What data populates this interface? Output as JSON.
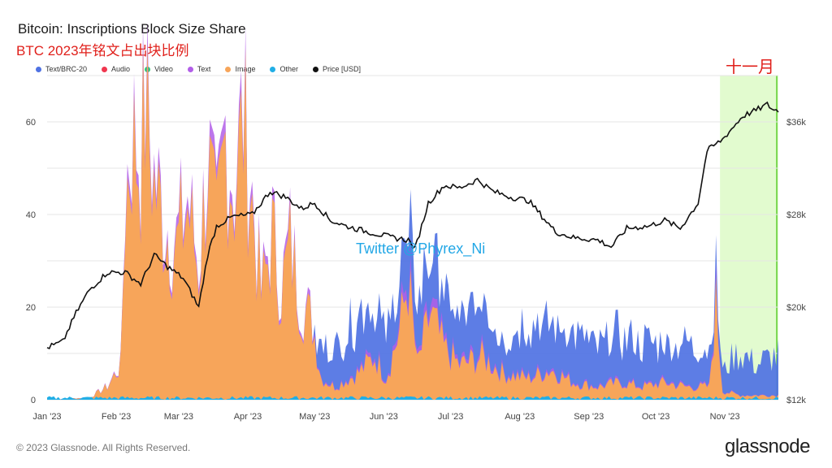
{
  "chart_data": {
    "type": "area",
    "title": "Bitcoin: Inscriptions Block Size Share",
    "subtitle": "BTC 2023年铭文占出块比例",
    "annotation": "十一月",
    "watermark": "Twitter @Phyrex_Ni",
    "x_ticks": [
      "Jan '23",
      "Feb '23",
      "Mar '23",
      "Apr '23",
      "May '23",
      "Jun '23",
      "Jul '23",
      "Aug '23",
      "Sep '23",
      "Oct '23",
      "Nov '23"
    ],
    "y_left_ticks": [
      "0",
      "20",
      "40",
      "60"
    ],
    "y_left_range": [
      0,
      70
    ],
    "y_right_ticks": [
      "$12k",
      "$20k",
      "$28k",
      "$36k"
    ],
    "y_right_range": [
      12,
      40
    ],
    "grid": true,
    "legend_position": "top-left",
    "highlight_period": [
      "Nov '23",
      "end"
    ],
    "series": [
      {
        "name": "Text/BRC-20",
        "color": "#4f72e3"
      },
      {
        "name": "Audio",
        "color": "#f0364f"
      },
      {
        "name": "Video",
        "color": "#2ecc71"
      },
      {
        "name": "Text",
        "color": "#b25ee8"
      },
      {
        "name": "Image",
        "color": "#f7a55a"
      },
      {
        "name": "Other",
        "color": "#21aee6"
      },
      {
        "name": "Price [USD]",
        "color": "#111111"
      }
    ],
    "image_share_points": [
      [
        "2023-01-01",
        0
      ],
      [
        "2023-01-20",
        0.5
      ],
      [
        "2023-01-28",
        3
      ],
      [
        "2023-02-03",
        8
      ],
      [
        "2023-02-05",
        45
      ],
      [
        "2023-02-08",
        60
      ],
      [
        "2023-02-12",
        55
      ],
      [
        "2023-02-14",
        68
      ],
      [
        "2023-02-18",
        50
      ],
      [
        "2023-02-23",
        40
      ],
      [
        "2023-02-28",
        35
      ],
      [
        "2023-03-05",
        45
      ],
      [
        "2023-03-10",
        30
      ],
      [
        "2023-03-14",
        55
      ],
      [
        "2023-03-18",
        38
      ],
      [
        "2023-03-22",
        60
      ],
      [
        "2023-03-26",
        48
      ],
      [
        "2023-03-30",
        65
      ],
      [
        "2023-04-03",
        45
      ],
      [
        "2023-04-07",
        24
      ],
      [
        "2023-04-12",
        38
      ],
      [
        "2023-04-16",
        25
      ],
      [
        "2023-04-20",
        36
      ],
      [
        "2023-04-25",
        22
      ],
      [
        "2023-04-30",
        18
      ],
      [
        "2023-05-04",
        5
      ],
      [
        "2023-05-10",
        3
      ],
      [
        "2023-05-20",
        6
      ],
      [
        "2023-05-28",
        10
      ],
      [
        "2023-06-02",
        5
      ],
      [
        "2023-06-08",
        16
      ],
      [
        "2023-06-12",
        28
      ],
      [
        "2023-06-16",
        8
      ],
      [
        "2023-06-22",
        20
      ],
      [
        "2023-06-28",
        12
      ],
      [
        "2023-07-05",
        8
      ],
      [
        "2023-07-15",
        10
      ],
      [
        "2023-07-25",
        6
      ],
      [
        "2023-08-05",
        5
      ],
      [
        "2023-08-15",
        7
      ],
      [
        "2023-08-25",
        4
      ],
      [
        "2023-09-05",
        3
      ],
      [
        "2023-09-15",
        4
      ],
      [
        "2023-09-25",
        3
      ],
      [
        "2023-10-05",
        4
      ],
      [
        "2023-10-15",
        3
      ],
      [
        "2023-10-25",
        3
      ],
      [
        "2023-10-28",
        22
      ],
      [
        "2023-10-31",
        2
      ],
      [
        "2023-11-08",
        1
      ],
      [
        "2023-11-20",
        1
      ]
    ],
    "brc20_share_points": [
      [
        "2023-01-01",
        0
      ],
      [
        "2023-04-30",
        0
      ],
      [
        "2023-05-04",
        8
      ],
      [
        "2023-05-12",
        10
      ],
      [
        "2023-05-20",
        14
      ],
      [
        "2023-05-28",
        12
      ],
      [
        "2023-06-05",
        11
      ],
      [
        "2023-06-15",
        13
      ],
      [
        "2023-06-25",
        12
      ],
      [
        "2023-07-05",
        10
      ],
      [
        "2023-07-15",
        11
      ],
      [
        "2023-07-25",
        9
      ],
      [
        "2023-08-05",
        13
      ],
      [
        "2023-08-15",
        11
      ],
      [
        "2023-08-25",
        12
      ],
      [
        "2023-09-05",
        9
      ],
      [
        "2023-09-15",
        11
      ],
      [
        "2023-09-25",
        10
      ],
      [
        "2023-10-05",
        9
      ],
      [
        "2023-10-15",
        10
      ],
      [
        "2023-10-25",
        8
      ],
      [
        "2023-10-31",
        5
      ],
      [
        "2023-11-08",
        10
      ],
      [
        "2023-11-15",
        7
      ],
      [
        "2023-11-22",
        9
      ]
    ],
    "price_points": [
      [
        "2023-01-01",
        16.5
      ],
      [
        "2023-01-08",
        17.0
      ],
      [
        "2023-01-14",
        19.5
      ],
      [
        "2023-01-20",
        21.5
      ],
      [
        "2023-01-28",
        23.0
      ],
      [
        "2023-02-05",
        23.0
      ],
      [
        "2023-02-12",
        22.0
      ],
      [
        "2023-02-18",
        24.5
      ],
      [
        "2023-02-24",
        23.5
      ],
      [
        "2023-03-03",
        22.5
      ],
      [
        "2023-03-10",
        20.0
      ],
      [
        "2023-03-14",
        24.5
      ],
      [
        "2023-03-18",
        27.0
      ],
      [
        "2023-03-25",
        27.8
      ],
      [
        "2023-04-03",
        28.0
      ],
      [
        "2023-04-11",
        30.0
      ],
      [
        "2023-04-18",
        29.5
      ],
      [
        "2023-04-25",
        28.5
      ],
      [
        "2023-05-01",
        29.0
      ],
      [
        "2023-05-08",
        27.5
      ],
      [
        "2023-05-15",
        27.0
      ],
      [
        "2023-05-25",
        26.5
      ],
      [
        "2023-06-05",
        26.0
      ],
      [
        "2023-06-12",
        25.8
      ],
      [
        "2023-06-15",
        25.0
      ],
      [
        "2023-06-21",
        29.0
      ],
      [
        "2023-06-28",
        30.5
      ],
      [
        "2023-07-05",
        30.3
      ],
      [
        "2023-07-13",
        31.0
      ],
      [
        "2023-07-20",
        30.0
      ],
      [
        "2023-07-28",
        29.5
      ],
      [
        "2023-08-05",
        29.2
      ],
      [
        "2023-08-17",
        26.5
      ],
      [
        "2023-08-25",
        26.0
      ],
      [
        "2023-09-05",
        25.8
      ],
      [
        "2023-09-11",
        25.2
      ],
      [
        "2023-09-18",
        26.8
      ],
      [
        "2023-09-28",
        27.0
      ],
      [
        "2023-10-05",
        27.5
      ],
      [
        "2023-10-12",
        26.8
      ],
      [
        "2023-10-20",
        29.0
      ],
      [
        "2023-10-24",
        33.5
      ],
      [
        "2023-10-31",
        34.5
      ],
      [
        "2023-11-09",
        36.5
      ],
      [
        "2023-11-15",
        37.0
      ],
      [
        "2023-11-20",
        37.5
      ],
      [
        "2023-11-23",
        37.0
      ]
    ]
  },
  "legend_labels": [
    "Text/BRC-20",
    "Audio",
    "Video",
    "Text",
    "Image",
    "Other",
    "Price [USD]"
  ],
  "footer": {
    "copyright": "© 2023 Glassnode. All Rights Reserved.",
    "brand": "glassnode"
  }
}
